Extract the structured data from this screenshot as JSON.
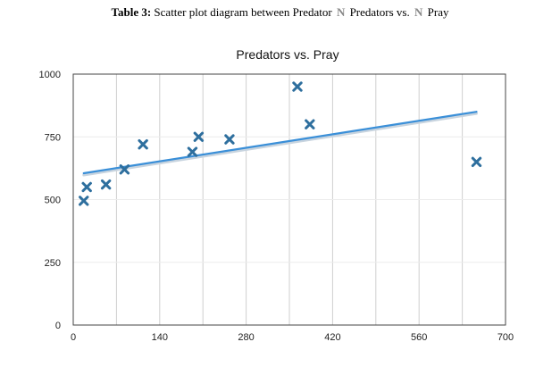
{
  "caption": {
    "label": "Table 3:",
    "text_before": "Scatter plot diagram between Predator",
    "symbol": "N",
    "text_middle": "Predators vs.",
    "text_after": "Pray"
  },
  "chart_data": {
    "type": "scatter",
    "title": "Predators vs. Pray",
    "xlabel": "",
    "ylabel": "",
    "xlim": [
      0,
      700
    ],
    "ylim": [
      0,
      1000
    ],
    "xticks": [
      0,
      140,
      280,
      420,
      560,
      700
    ],
    "yticks": [
      0,
      250,
      500,
      750,
      1000
    ],
    "grid": "vertical",
    "points": [
      {
        "x": 17,
        "y": 495
      },
      {
        "x": 22,
        "y": 550
      },
      {
        "x": 53,
        "y": 560
      },
      {
        "x": 83,
        "y": 620
      },
      {
        "x": 113,
        "y": 720
      },
      {
        "x": 193,
        "y": 690
      },
      {
        "x": 203,
        "y": 750
      },
      {
        "x": 253,
        "y": 740
      },
      {
        "x": 363,
        "y": 950
      },
      {
        "x": 383,
        "y": 800
      },
      {
        "x": 653,
        "y": 650
      }
    ],
    "trendline": {
      "x": [
        17,
        653
      ],
      "y": [
        605,
        850
      ]
    },
    "colors": {
      "marker": "#2e6f9e",
      "trend": "#3a8fd8",
      "trend_shadow": "#c8d4df",
      "grid": "#cfcfcf",
      "axis": "#444444"
    }
  }
}
